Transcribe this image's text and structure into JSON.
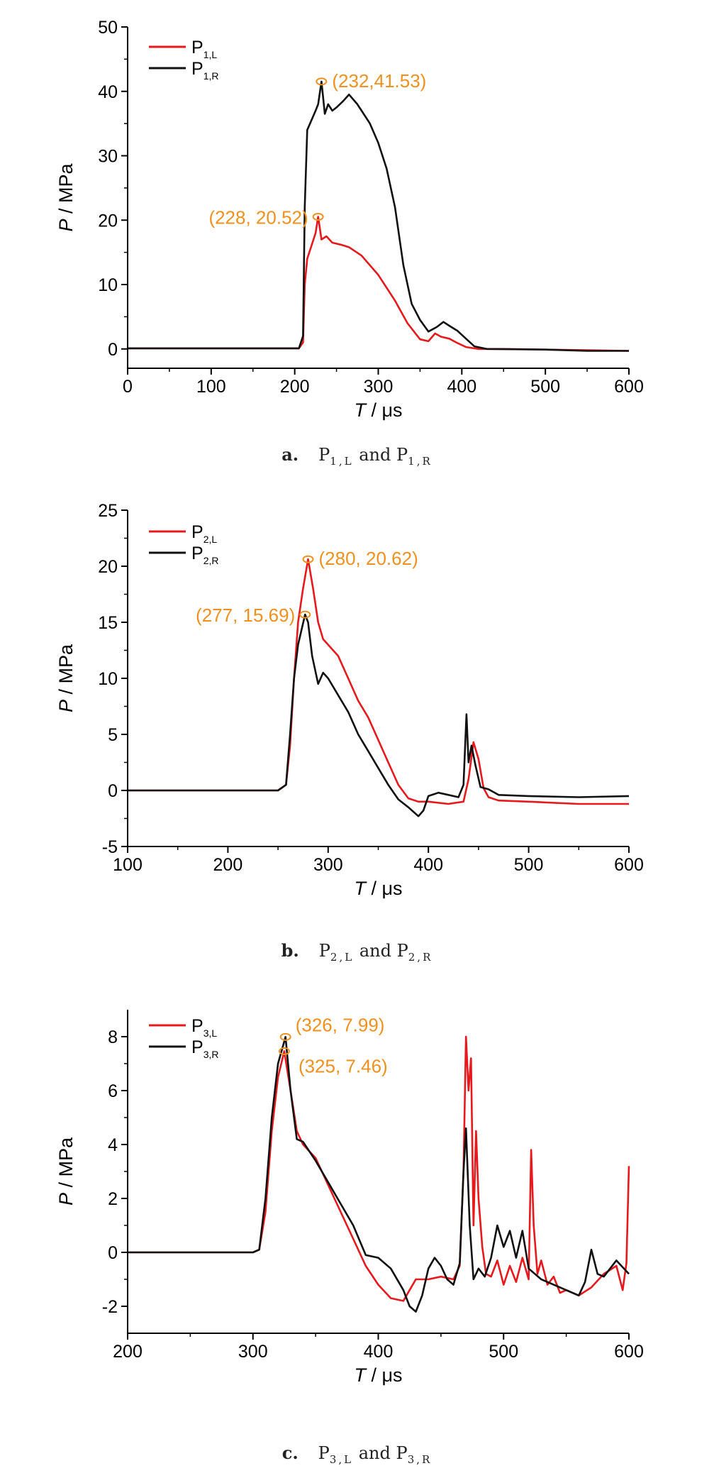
{
  "colors": {
    "red": "#e8191c",
    "black": "#111111",
    "annotation": "#f0901e"
  },
  "chart_data": [
    {
      "type": "line",
      "xlabel": "T / μs",
      "ylabel": "P / MPa",
      "xlim": [
        0,
        600
      ],
      "ylim": [
        -3,
        50
      ],
      "xticks": [
        0,
        100,
        200,
        300,
        400,
        500,
        600
      ],
      "yticks": [
        0,
        10,
        20,
        30,
        40,
        50
      ],
      "legend_position": "top-left",
      "caption": {
        "letter": "a.",
        "p1": "P",
        "s1": "1,L",
        "and": "and",
        "p2": "P",
        "s2": "1,R"
      },
      "series": [
        {
          "name_main": "P",
          "name_sub": "1,L",
          "color": "#e8191c",
          "x": [
            0,
            100,
            150,
            205,
            210,
            212,
            215,
            220,
            225,
            228,
            232,
            238,
            245,
            255,
            265,
            280,
            300,
            320,
            335,
            350,
            360,
            368,
            375,
            385,
            395,
            405,
            420,
            450,
            500,
            550,
            600
          ],
          "y": [
            0.1,
            0.1,
            0.1,
            0.1,
            1,
            10,
            14,
            16,
            18,
            20.52,
            17,
            17.5,
            16.5,
            16.2,
            15.8,
            14.5,
            11.5,
            7.5,
            4,
            1.5,
            1.2,
            2.4,
            1.9,
            1.6,
            0.9,
            0.3,
            0,
            0,
            -0.1,
            -0.2,
            -0.3
          ]
        },
        {
          "name_main": "P",
          "name_sub": "1,R",
          "color": "#111111",
          "x": [
            0,
            100,
            150,
            205,
            210,
            212,
            215,
            220,
            225,
            228,
            232,
            236,
            240,
            245,
            250,
            258,
            265,
            275,
            290,
            300,
            310,
            320,
            330,
            340,
            350,
            360,
            370,
            378,
            385,
            395,
            405,
            415,
            430,
            500,
            550,
            600
          ],
          "y": [
            0.1,
            0.1,
            0.1,
            0.1,
            2,
            22,
            34,
            35.5,
            37,
            38,
            41.53,
            36.5,
            38,
            37,
            37.5,
            38.5,
            39.5,
            38,
            35,
            32,
            28,
            22,
            13,
            7,
            4.5,
            2.7,
            3.4,
            4.2,
            3.6,
            2.8,
            1.6,
            0.4,
            0,
            -0.1,
            -0.3,
            -0.3
          ]
        }
      ],
      "annotations": [
        {
          "series": 1,
          "x": 232,
          "y": 41.53,
          "label": "(232,41.53)",
          "side": "right"
        },
        {
          "series": 0,
          "x": 228,
          "y": 20.52,
          "label": "(228, 20.52)",
          "side": "left"
        }
      ]
    },
    {
      "type": "line",
      "xlabel": "T / μs",
      "ylabel": "P / MPa",
      "xlim": [
        100,
        600
      ],
      "ylim": [
        -5,
        25
      ],
      "xticks": [
        100,
        200,
        300,
        400,
        500,
        600
      ],
      "yticks": [
        -5,
        0,
        5,
        10,
        15,
        20,
        25
      ],
      "legend_position": "top-left",
      "caption": {
        "letter": "b.",
        "p1": "P",
        "s1": "2,L",
        "and": "and",
        "p2": "P",
        "s2": "2,R"
      },
      "series": [
        {
          "name_main": "P",
          "name_sub": "2,L",
          "color": "#e8191c",
          "x": [
            100,
            150,
            200,
            250,
            258,
            262,
            266,
            270,
            275,
            280,
            285,
            290,
            295,
            300,
            310,
            320,
            330,
            340,
            350,
            360,
            370,
            380,
            390,
            400,
            420,
            435,
            440,
            445,
            450,
            455,
            460,
            470,
            500,
            550,
            600
          ],
          "y": [
            0,
            0,
            0,
            0,
            0.5,
            4,
            10,
            15,
            18,
            20.62,
            18,
            15,
            13.5,
            13,
            12,
            10,
            8,
            6.5,
            4.5,
            2.5,
            0.5,
            -0.7,
            -1,
            -1,
            -1.2,
            -1,
            1,
            4.3,
            2.8,
            0.2,
            -0.6,
            -0.9,
            -1,
            -1.2,
            -1.2
          ]
        },
        {
          "name_main": "P",
          "name_sub": "2,R",
          "color": "#111111",
          "x": [
            100,
            150,
            200,
            250,
            258,
            262,
            266,
            270,
            277,
            280,
            284,
            290,
            295,
            300,
            310,
            320,
            330,
            340,
            350,
            360,
            370,
            380,
            390,
            395,
            400,
            410,
            420,
            430,
            435,
            438,
            440,
            443,
            447,
            452,
            460,
            470,
            500,
            550,
            600
          ],
          "y": [
            0,
            0,
            0,
            0,
            0.5,
            5,
            10,
            13,
            15.69,
            15,
            12,
            9.5,
            10.5,
            10,
            8.5,
            7,
            5,
            3.5,
            2,
            0.5,
            -0.8,
            -1.5,
            -2.3,
            -1.8,
            -0.5,
            -0.2,
            -0.4,
            -0.6,
            0.5,
            6.8,
            2.5,
            4,
            2.2,
            0.3,
            0.1,
            -0.4,
            -0.5,
            -0.6,
            -0.5
          ]
        }
      ],
      "annotations": [
        {
          "series": 0,
          "x": 280,
          "y": 20.62,
          "label": "(280, 20.62)",
          "side": "right"
        },
        {
          "series": 1,
          "x": 277,
          "y": 15.69,
          "label": "(277, 15.69)",
          "side": "left"
        }
      ]
    },
    {
      "type": "line",
      "xlabel": "T / μs",
      "ylabel": "P / MPa",
      "xlim": [
        200,
        600
      ],
      "ylim": [
        -3,
        9
      ],
      "xticks": [
        200,
        300,
        400,
        500,
        600
      ],
      "yticks": [
        -2,
        0,
        2,
        4,
        6,
        8
      ],
      "legend_position": "top-left",
      "caption": {
        "letter": "c.",
        "p1": "P",
        "s1": "3,L",
        "and": "and",
        "p2": "P",
        "s2": "3,R"
      },
      "series": [
        {
          "name_main": "P",
          "name_sub": "3,L",
          "color": "#e8191c",
          "x": [
            200,
            250,
            300,
            305,
            310,
            315,
            320,
            325,
            330,
            335,
            340,
            350,
            360,
            370,
            380,
            390,
            400,
            410,
            420,
            425,
            430,
            440,
            450,
            460,
            465,
            468,
            470,
            472,
            474,
            476,
            478,
            480,
            483,
            486,
            490,
            495,
            500,
            505,
            510,
            515,
            520,
            522,
            524,
            527,
            530,
            535,
            540,
            545,
            550,
            560,
            570,
            580,
            590,
            595,
            598,
            600
          ],
          "y": [
            0,
            0,
            0,
            0.1,
            1.5,
            4.5,
            6.5,
            7.46,
            6,
            4.5,
            4,
            3.5,
            2.5,
            1.5,
            0.5,
            -0.5,
            -1.2,
            -1.7,
            -1.8,
            -1.4,
            -1,
            -1,
            -0.9,
            -1,
            -0.5,
            3,
            8,
            6,
            7.2,
            1,
            4.5,
            2,
            0.2,
            -0.8,
            -0.9,
            -0.3,
            -1.2,
            -0.5,
            -1.1,
            -0.2,
            -1,
            3.8,
            1,
            -0.8,
            -0.3,
            -1.2,
            -0.9,
            -1.5,
            -1.4,
            -1.6,
            -1.3,
            -0.8,
            -0.5,
            -1.4,
            -0.4,
            3.2
          ]
        },
        {
          "name_main": "P",
          "name_sub": "3,R",
          "color": "#111111",
          "x": [
            200,
            250,
            300,
            305,
            310,
            315,
            320,
            326,
            330,
            335,
            340,
            350,
            360,
            370,
            380,
            390,
            400,
            410,
            420,
            425,
            430,
            435,
            440,
            445,
            450,
            455,
            460,
            465,
            468,
            470,
            473,
            476,
            480,
            485,
            490,
            495,
            500,
            505,
            510,
            515,
            520,
            530,
            540,
            550,
            560,
            565,
            570,
            575,
            580,
            590,
            600
          ],
          "y": [
            0,
            0,
            0,
            0.1,
            2,
            5,
            7,
            7.99,
            6,
            4.2,
            4.1,
            3.4,
            2.6,
            1.8,
            1,
            -0.1,
            -0.2,
            -0.6,
            -1.4,
            -2,
            -2.2,
            -1.6,
            -0.6,
            -0.2,
            -0.5,
            -1,
            -1.2,
            -0.4,
            3,
            4.6,
            1,
            -1,
            -0.6,
            -0.9,
            -0.2,
            1,
            0.2,
            0.8,
            -0.2,
            0.8,
            -0.6,
            -1,
            -1.2,
            -1.4,
            -1.6,
            -1.1,
            0.1,
            -0.8,
            -0.9,
            -0.3,
            -0.8
          ]
        }
      ],
      "annotations": [
        {
          "series": 1,
          "x": 326,
          "y": 7.99,
          "label": "(326, 7.99)",
          "side": "right-up"
        },
        {
          "series": 0,
          "x": 325,
          "y": 7.46,
          "label": "(325, 7.46)",
          "side": "right-down"
        }
      ]
    }
  ]
}
